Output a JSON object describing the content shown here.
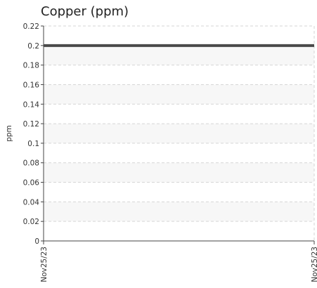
{
  "chart_data": {
    "type": "line",
    "title": "Copper (ppm)",
    "xlabel": "",
    "ylabel": "ppm",
    "x": [
      "Nov25/23",
      "Nov25/23"
    ],
    "series": [
      {
        "values": [
          0.2,
          0.2
        ]
      }
    ],
    "ylim": [
      0,
      0.22
    ],
    "yticks": [
      "0",
      "0.02",
      "0.04",
      "0.06",
      "0.08",
      "0.1",
      "0.12",
      "0.14",
      "0.16",
      "0.18",
      "0.2",
      "0.22"
    ],
    "grid": true,
    "band_color": "#f7f7f7",
    "grid_color": "#d6d6d6",
    "line_color": "#4a4a4a"
  }
}
